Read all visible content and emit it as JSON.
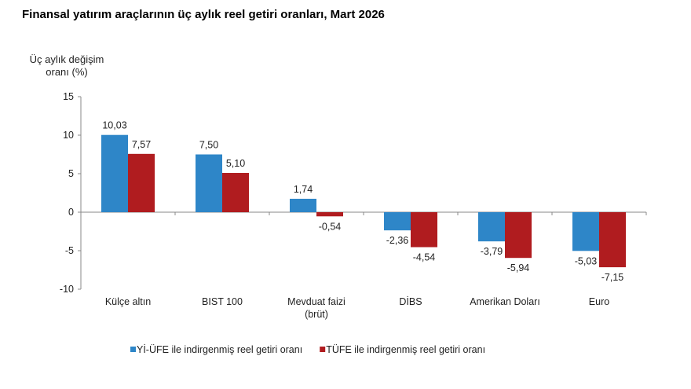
{
  "chart_data": {
    "type": "bar",
    "title": "Finansal yatırım araçlarının üç aylık reel getiri oranları, Mart 2026",
    "ylabel": [
      "Üç aylık değişim",
      "oranı (%)"
    ],
    "xlabel": "",
    "categories": [
      [
        "Külçe altın"
      ],
      [
        "BIST 100"
      ],
      [
        "Mevduat faizi",
        "(brüt)"
      ],
      [
        "DİBS"
      ],
      [
        "Amerikan Doları"
      ],
      [
        "Euro"
      ]
    ],
    "series": [
      {
        "name": "Yİ-ÜFE ile indirgenmiş reel getiri oranı",
        "color": "#2e86c8",
        "values": [
          10.03,
          7.5,
          1.74,
          -2.36,
          -3.79,
          -5.03
        ],
        "labels": [
          "10,03",
          "7,50",
          "1,74",
          "-2,36",
          "-3,79",
          "-5,03"
        ]
      },
      {
        "name": "TÜFE ile indirgenmiş reel getiri oranı",
        "color": "#b01c1f",
        "values": [
          7.57,
          5.1,
          -0.54,
          -4.54,
          -5.94,
          -7.15
        ],
        "labels": [
          "7,57",
          "5,10",
          "-0,54",
          "-4,54",
          "-5,94",
          "-7,15"
        ]
      }
    ],
    "ylim": [
      -10,
      15
    ],
    "yticks": [
      15,
      10,
      5,
      0,
      -5,
      -10
    ],
    "grid": false,
    "legend": "bottom"
  }
}
